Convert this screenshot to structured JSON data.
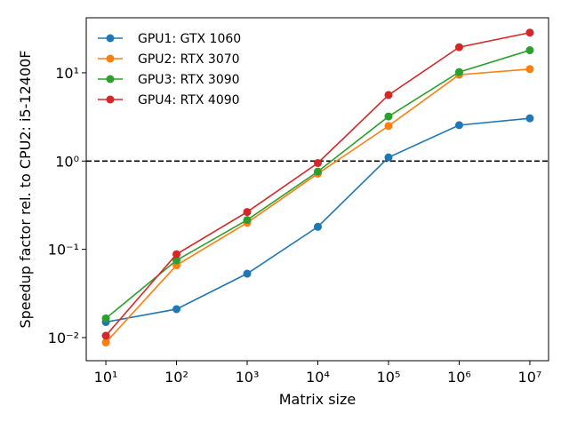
{
  "chart_data": {
    "type": "line",
    "xlabel": "Matrix size",
    "ylabel": "Speedup factor rel. to CPU2: i5-12400F",
    "xscale": "log",
    "yscale": "log",
    "x": [
      10,
      100,
      1000,
      10000,
      100000,
      1000000,
      10000000
    ],
    "series": [
      {
        "name": "GPU1: GTX 1060",
        "color": "#1f77b4",
        "values": [
          0.015,
          0.021,
          0.053,
          0.18,
          1.1,
          2.55,
          3.05
        ]
      },
      {
        "name": "GPU2: RTX 3070",
        "color": "#ff7f0e",
        "values": [
          0.0088,
          0.066,
          0.2,
          0.72,
          2.5,
          9.5,
          11
        ]
      },
      {
        "name": "GPU3: RTX 3090",
        "color": "#2ca02c",
        "values": [
          0.0165,
          0.075,
          0.215,
          0.76,
          3.2,
          10.2,
          18
        ]
      },
      {
        "name": "GPU4: RTX 4090",
        "color": "#d62728",
        "values": [
          0.0105,
          0.088,
          0.265,
          0.95,
          5.6,
          19.5,
          28.5
        ]
      }
    ],
    "reference_line": 1,
    "xlim": [
      5.28,
      18400000
    ],
    "ylim": [
      0.00547,
      42
    ],
    "xticks": [
      {
        "value": 10,
        "label": "10¹"
      },
      {
        "value": 100,
        "label": "10²"
      },
      {
        "value": 1000,
        "label": "10³"
      },
      {
        "value": 10000,
        "label": "10⁴"
      },
      {
        "value": 100000,
        "label": "10⁵"
      },
      {
        "value": 1000000,
        "label": "10⁶"
      },
      {
        "value": 10000000,
        "label": "10⁷"
      }
    ],
    "yticks": [
      {
        "value": 0.01,
        "label": "10⁻²"
      },
      {
        "value": 0.1,
        "label": "10⁻¹"
      },
      {
        "value": 1,
        "label": "10⁰"
      },
      {
        "value": 10,
        "label": "10¹"
      }
    ],
    "legend": "upper left"
  }
}
